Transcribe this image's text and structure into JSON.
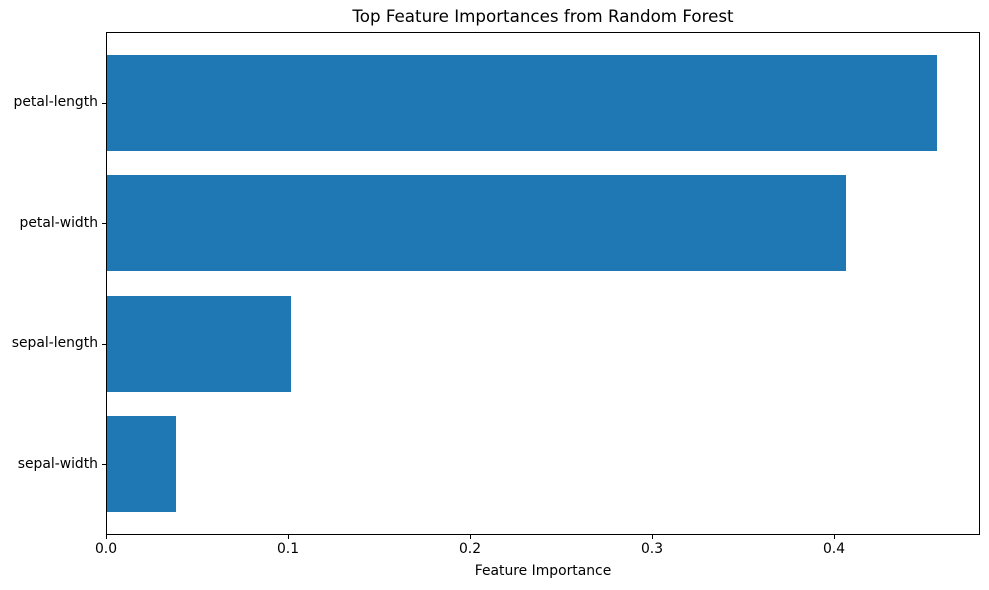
{
  "figure": {
    "background": "#ffffff"
  },
  "chart_data": {
    "type": "bar",
    "orientation": "horizontal",
    "title": "Top Feature Importances from Random Forest",
    "xlabel": "Feature Importance",
    "ylabel": "",
    "categories": [
      "petal-length",
      "petal-width",
      "sepal-length",
      "sepal-width"
    ],
    "values": [
      0.456,
      0.406,
      0.101,
      0.038
    ],
    "xlim": [
      0,
      0.48
    ],
    "x_tick_values": [
      0.0,
      0.1,
      0.2,
      0.3,
      0.4
    ],
    "x_tick_labels": [
      "0.0",
      "0.1",
      "0.2",
      "0.3",
      "0.4"
    ],
    "bar_color": "#1f77b4",
    "axis_color": "#000000",
    "grid": false,
    "legend": false
  }
}
